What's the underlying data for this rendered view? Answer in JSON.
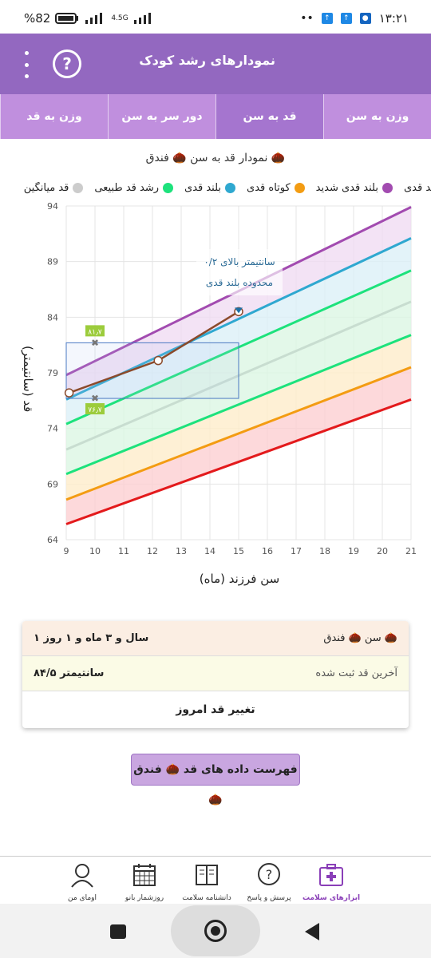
{
  "status_bar": {
    "battery": "%82",
    "network": "4.5G",
    "time": "۱۳:۲۱"
  },
  "header": {
    "title": "نمودارهای رشد کودک"
  },
  "tabs": [
    {
      "label": "وزن به سن",
      "active": false
    },
    {
      "label": "قد به سن",
      "active": true
    },
    {
      "label": "دور سر به سن",
      "active": false
    },
    {
      "label": "وزن به قد",
      "active": false
    }
  ],
  "chart_title": "نمودار قد به سن 🌰 فندق 🌰",
  "legend": [
    {
      "label": "بلند قدی",
      "color": "#e31a1c"
    },
    {
      "label": "بلند قدی شدید",
      "color": "#a24bb0"
    },
    {
      "label": "کوتاه قدی",
      "color": "#f39c12"
    },
    {
      "label": "بلند قدی",
      "color": "#2fa8d0"
    },
    {
      "label": "رشد قد طبیعی",
      "color": "#1de27c"
    },
    {
      "label": "قد میانگین",
      "color": "#cccccc"
    }
  ],
  "chart_data": {
    "type": "line",
    "xlabel": "سن فرزند (ماه)",
    "ylabel": "قد (سانتیمتر)",
    "xlim": [
      9,
      21
    ],
    "ylim": [
      64,
      94
    ],
    "x_ticks": [
      9,
      10,
      11,
      12,
      13,
      14,
      15,
      16,
      17,
      18,
      19,
      20,
      21
    ],
    "y_ticks": [
      64,
      69,
      74,
      79,
      84,
      89,
      94
    ],
    "grid": true,
    "reference_curves": [
      {
        "color": "#e31a1c",
        "x": [
          9,
          21
        ],
        "y": [
          65.4,
          76.6
        ]
      },
      {
        "color": "#f39c12",
        "x": [
          9,
          21
        ],
        "y": [
          67.6,
          79.5
        ]
      },
      {
        "color": "#1de27c",
        "x": [
          9,
          21
        ],
        "y": [
          69.9,
          82.4
        ]
      },
      {
        "color": "#c8ddd0",
        "x": [
          9,
          21
        ],
        "y": [
          72.1,
          85.4
        ]
      },
      {
        "color": "#1de27c",
        "x": [
          9,
          21
        ],
        "y": [
          74.4,
          88.2
        ]
      },
      {
        "color": "#2fa8d0",
        "x": [
          9,
          21
        ],
        "y": [
          76.6,
          91.1
        ]
      },
      {
        "color": "#a24bb0",
        "x": [
          9,
          21
        ],
        "y": [
          78.8,
          93.9
        ]
      }
    ],
    "child_series": {
      "color": "#8b4a2b",
      "x": [
        9.1,
        12.2,
        15.0
      ],
      "y": [
        77.2,
        80.1,
        84.5
      ]
    },
    "range_box": {
      "x": [
        9,
        15
      ],
      "y": [
        76.7,
        81.7
      ]
    },
    "range_labels": [
      "۸۱٫۷",
      "۷۶٫۷"
    ],
    "annotation": [
      "۰/۲ سانتیمتر بالای",
      "محدوده بلند قدی"
    ]
  },
  "info_card": {
    "child_label": "سن 🌰 فندق 🌰",
    "child_age": "۱ سال و ۳ ماه و ۱ روز",
    "last_height_label": "آخرین قد ثبت شده",
    "last_height_value": "۸۴/۵ سانتیمتر",
    "change_button": "تغییر قد امروز"
  },
  "list_button": "فهرست داده های قد 🌰 فندق 🌰",
  "bottom_nav": [
    {
      "label": "ابزارهای سلامت",
      "icon": "health-kit-icon",
      "active": true
    },
    {
      "label": "پرسش و پاسخ",
      "icon": "question-icon",
      "active": false
    },
    {
      "label": "دانشنامه سلامت",
      "icon": "book-icon",
      "active": false
    },
    {
      "label": "روزشمار بانو",
      "icon": "calendar-icon",
      "active": false
    },
    {
      "label": "اومای من",
      "icon": "profile-icon",
      "active": false
    }
  ]
}
